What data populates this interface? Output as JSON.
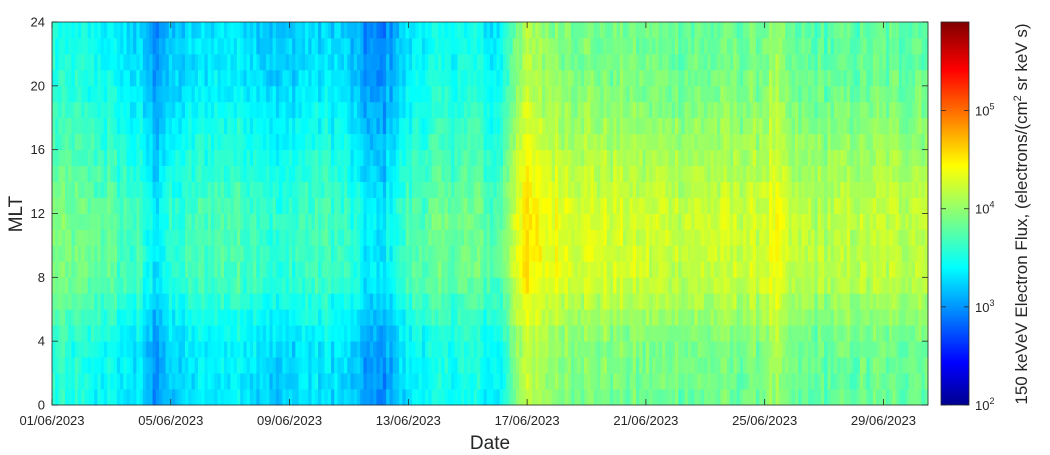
{
  "chart_data": {
    "type": "heatmap",
    "xlabel": "Date",
    "ylabel": "MLT",
    "colorbar_label": "150 keVeV Electron Flux, (electrons/(cm",
    "colorbar_label_sup": "2",
    "colorbar_label_end": " sr keV s)",
    "x_range": [
      "01/06/2023",
      "30/06/2023"
    ],
    "x_ticks": [
      "01/06/2023",
      "05/06/2023",
      "09/06/2023",
      "13/06/2023",
      "17/06/2023",
      "21/06/2023",
      "25/06/2023",
      "29/06/2023"
    ],
    "ylim": [
      0,
      24
    ],
    "y_ticks": [
      "0",
      "4",
      "8",
      "12",
      "16",
      "20",
      "24"
    ],
    "colorscale": "jet",
    "color_scale_type": "log",
    "color_range": [
      100,
      800000
    ],
    "colorbar_ticks": [
      {
        "base": "10",
        "exp": "2",
        "value": 100
      },
      {
        "base": "10",
        "exp": "3",
        "value": 1000
      },
      {
        "base": "10",
        "exp": "4",
        "value": 10000
      },
      {
        "base": "10",
        "exp": "5",
        "value": 100000
      }
    ],
    "mlt_bins": 24,
    "time_bins": 270,
    "day_profile": [
      {
        "day": 0.0,
        "flux": 6000
      },
      {
        "day": 1.0,
        "flux": 5200
      },
      {
        "day": 2.0,
        "flux": 4500
      },
      {
        "day": 3.0,
        "flux": 3200
      },
      {
        "day": 3.5,
        "flux": 1800
      },
      {
        "day": 4.0,
        "flux": 2600
      },
      {
        "day": 5.0,
        "flux": 3600
      },
      {
        "day": 6.0,
        "flux": 4000
      },
      {
        "day": 7.0,
        "flux": 3800
      },
      {
        "day": 7.8,
        "flux": 2600
      },
      {
        "day": 8.5,
        "flux": 3400
      },
      {
        "day": 9.5,
        "flux": 3600
      },
      {
        "day": 10.2,
        "flux": 2800
      },
      {
        "day": 10.8,
        "flux": 1700
      },
      {
        "day": 11.3,
        "flux": 1500
      },
      {
        "day": 11.8,
        "flux": 2700
      },
      {
        "day": 12.5,
        "flux": 4400
      },
      {
        "day": 13.5,
        "flux": 5000
      },
      {
        "day": 14.5,
        "flux": 5200
      },
      {
        "day": 15.2,
        "flux": 3800
      },
      {
        "day": 15.5,
        "flux": 5500
      },
      {
        "day": 15.9,
        "flux": 16000
      },
      {
        "day": 16.2,
        "flux": 22000
      },
      {
        "day": 16.8,
        "flux": 17000
      },
      {
        "day": 18.0,
        "flux": 14000
      },
      {
        "day": 20.0,
        "flux": 12000
      },
      {
        "day": 22.0,
        "flux": 11500
      },
      {
        "day": 24.0,
        "flux": 12000
      },
      {
        "day": 24.8,
        "flux": 17000
      },
      {
        "day": 25.3,
        "flux": 10000
      },
      {
        "day": 27.0,
        "flux": 10000
      },
      {
        "day": 29.0,
        "flux": 11000
      },
      {
        "day": 30.0,
        "flux": 12000
      }
    ],
    "mlt_profile": [
      {
        "mlt": 0,
        "factor": 0.65
      },
      {
        "mlt": 4,
        "factor": 0.75
      },
      {
        "mlt": 8,
        "factor": 1.45
      },
      {
        "mlt": 12,
        "factor": 1.5
      },
      {
        "mlt": 16,
        "factor": 1.05
      },
      {
        "mlt": 20,
        "factor": 0.72
      },
      {
        "mlt": 24,
        "factor": 0.6
      }
    ],
    "grid": false
  }
}
